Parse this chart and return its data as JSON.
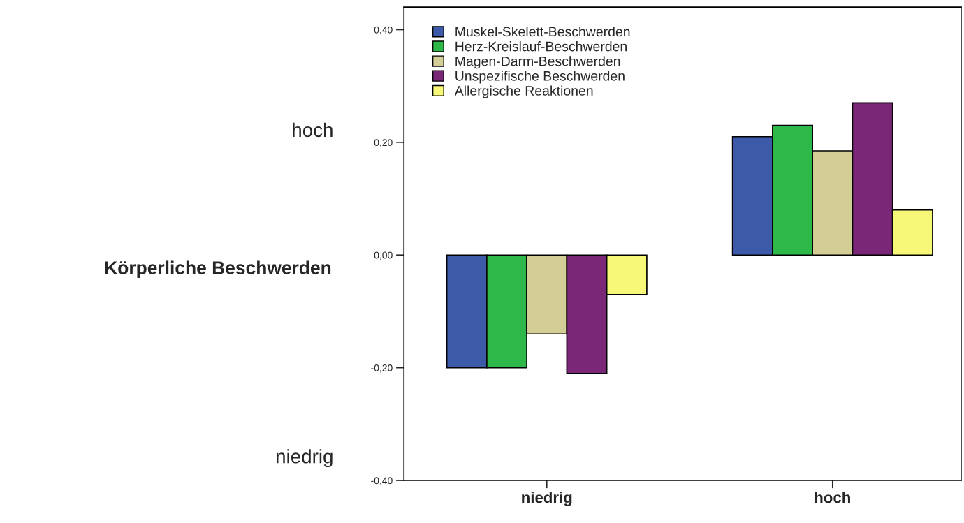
{
  "chart_data": {
    "type": "bar",
    "ylabel": "Körperliche Beschwerden",
    "categories": [
      "niedrig",
      "hoch"
    ],
    "series": [
      {
        "name": "Muskel-Skelett-Beschwerden",
        "color": "#3d5aa8",
        "values": [
          -0.2,
          0.21
        ]
      },
      {
        "name": "Herz-Kreislauf-Beschwerden",
        "color": "#2fb84a",
        "values": [
          -0.2,
          0.23
        ]
      },
      {
        "name": "Magen-Darm-Beschwerden",
        "color": "#d3cd96",
        "values": [
          -0.14,
          0.185
        ]
      },
      {
        "name": "Unspezifische Beschwerden",
        "color": "#7b2777",
        "values": [
          -0.21,
          0.27
        ]
      },
      {
        "name": "Allergische Reaktionen",
        "color": "#f8f878",
        "values": [
          -0.07,
          0.08
        ]
      }
    ],
    "ylim": [
      -0.4,
      0.44
    ],
    "yticks": [
      {
        "value": -0.4,
        "label": "-0,40"
      },
      {
        "value": -0.2,
        "label": "-0,20"
      },
      {
        "value": 0.0,
        "label": "0,00"
      },
      {
        "value": 0.2,
        "label": "0,20"
      },
      {
        "value": 0.4,
        "label": "0,40"
      }
    ],
    "annotations": [
      "hoch",
      "niedrig"
    ],
    "legend": "top left",
    "grid": false
  }
}
